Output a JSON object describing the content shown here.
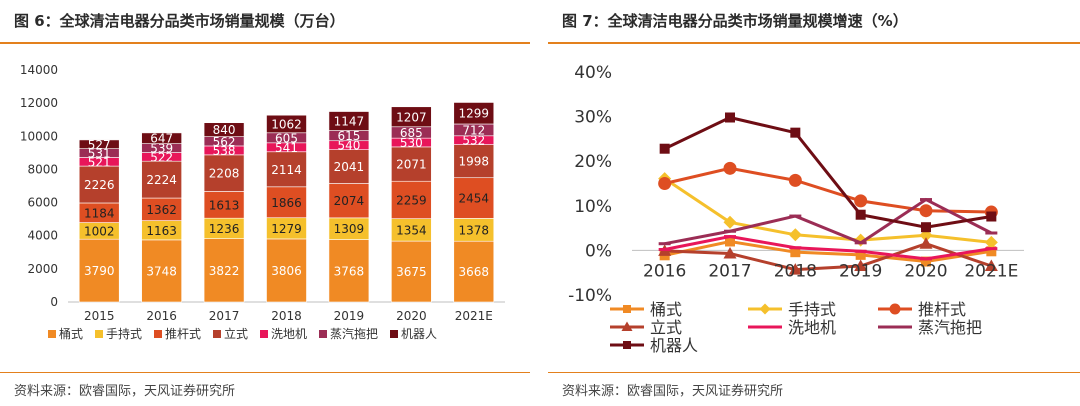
{
  "figures": [
    {
      "title": "图 6：全球清洁电器分品类市场销量规模（万台）",
      "source": "资料来源：欧睿国际，天风证券研究所"
    },
    {
      "title": "图 7：全球清洁电器分品类市场销量规模增速（%）",
      "source": "资料来源：欧睿国际，天风证券研究所"
    }
  ],
  "chart_data": [
    {
      "type": "bar",
      "stacked": true,
      "title": "",
      "xlabel": "",
      "ylabel": "",
      "categories": [
        "2015",
        "2016",
        "2017",
        "2018",
        "2019",
        "2020",
        "2021E"
      ],
      "ylim": [
        0,
        14000
      ],
      "yticks": [
        "0",
        "2000",
        "4000",
        "6000",
        "8000",
        "10000",
        "12000",
        "14000"
      ],
      "legend_position": "bottom",
      "series": [
        {
          "name": "桶式",
          "color": "#f08a24",
          "label_color": "#ffffff",
          "values": [
            3790,
            3748,
            3822,
            3806,
            3768,
            3675,
            3668
          ]
        },
        {
          "name": "手持式",
          "color": "#f5c02c",
          "label_color": "#222222",
          "values": [
            1002,
            1163,
            1236,
            1279,
            1309,
            1354,
            1378
          ]
        },
        {
          "name": "推杆式",
          "color": "#de4e22",
          "label_color": "#222222",
          "values": [
            1184,
            1362,
            1613,
            1866,
            2074,
            2259,
            2454
          ]
        },
        {
          "name": "立式",
          "color": "#b5402c",
          "label_color": "#ffffff",
          "values": [
            2226,
            2224,
            2208,
            2114,
            2041,
            2071,
            1998
          ]
        },
        {
          "name": "洗地机",
          "color": "#e8165a",
          "label_color": "#ffffff",
          "values": [
            521,
            522,
            538,
            541,
            540,
            530,
            532
          ]
        },
        {
          "name": "蒸汽拖把",
          "color": "#9b2d55",
          "label_color": "#ffffff",
          "values": [
            531,
            539,
            562,
            605,
            615,
            685,
            712
          ]
        },
        {
          "name": "机器人",
          "color": "#6e0d14",
          "label_color": "#ffffff",
          "values": [
            527,
            647,
            840,
            1062,
            1147,
            1207,
            1299
          ]
        }
      ]
    },
    {
      "type": "line",
      "title": "",
      "xlabel": "",
      "ylabel": "",
      "x": [
        "2016",
        "2017",
        "2018",
        "2019",
        "2020",
        "2021E"
      ],
      "ylim": [
        -10,
        40
      ],
      "yticks": [
        "-10%",
        "0%",
        "10%",
        "20%",
        "30%",
        "40%"
      ],
      "legend_position": "bottom",
      "series": [
        {
          "name": "桶式",
          "color": "#f08a24",
          "marker": "square",
          "values": [
            -1.1,
            2.0,
            -0.4,
            -1.0,
            -2.5,
            -0.2
          ]
        },
        {
          "name": "手持式",
          "color": "#f5c02c",
          "marker": "diamond",
          "values": [
            16.1,
            6.3,
            3.5,
            2.3,
            3.4,
            1.8
          ]
        },
        {
          "name": "推杆式",
          "color": "#de4e22",
          "marker": "circle",
          "values": [
            15.0,
            18.4,
            15.7,
            11.1,
            8.9,
            8.6
          ]
        },
        {
          "name": "立式",
          "color": "#b5402c",
          "marker": "triangle",
          "values": [
            -0.1,
            -0.7,
            -4.3,
            -3.5,
            1.5,
            -3.5
          ]
        },
        {
          "name": "洗地机",
          "color": "#e8165a",
          "marker": "dash",
          "values": [
            0.2,
            3.1,
            0.6,
            -0.2,
            -1.9,
            0.4
          ]
        },
        {
          "name": "蒸汽拖把",
          "color": "#9b2d55",
          "marker": "dash",
          "values": [
            1.5,
            4.3,
            7.7,
            1.7,
            11.4,
            3.9
          ]
        },
        {
          "name": "机器人",
          "color": "#6e0d14",
          "marker": "square",
          "values": [
            22.8,
            29.8,
            26.4,
            8.0,
            5.2,
            7.6
          ]
        }
      ]
    }
  ]
}
